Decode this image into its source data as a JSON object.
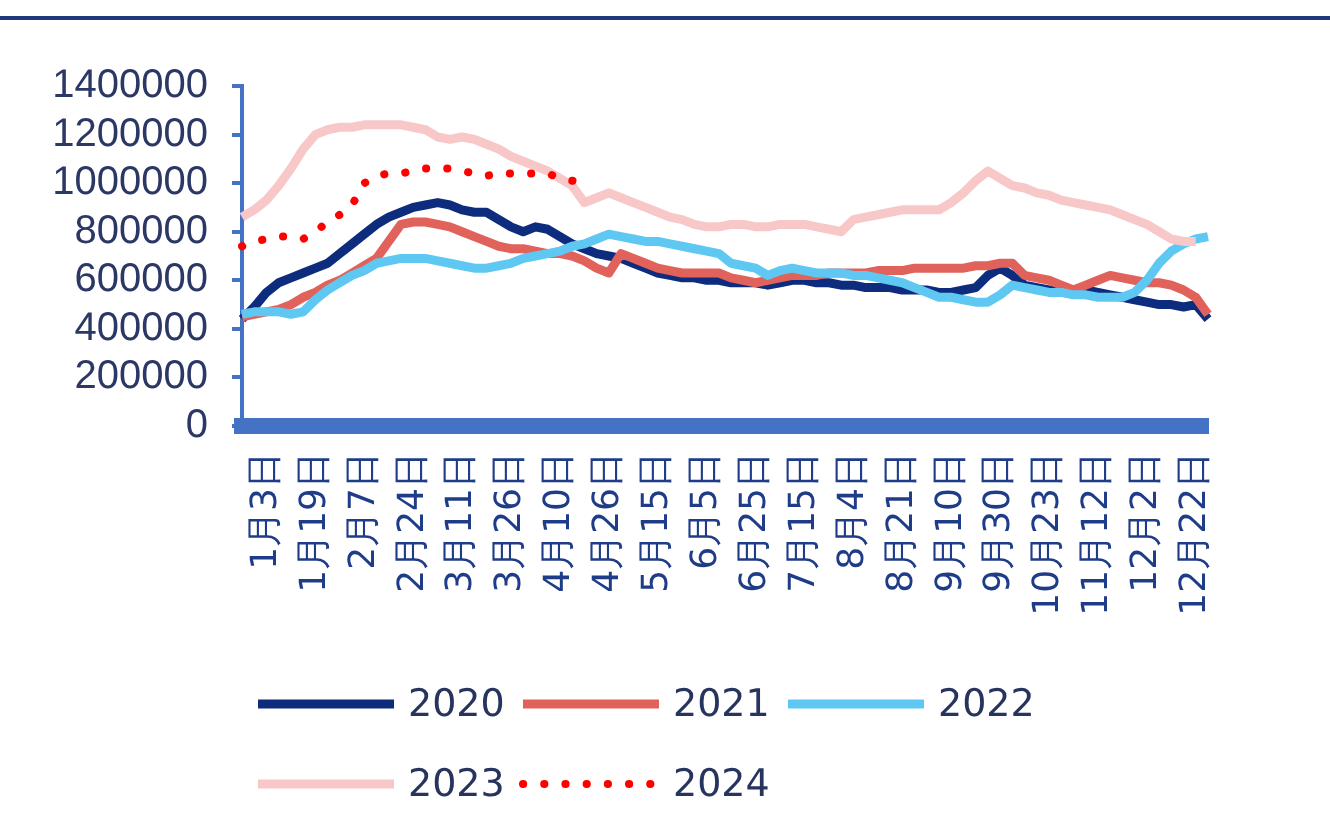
{
  "chart_data": {
    "type": "line",
    "categories": [
      null,
      null,
      "1月3日",
      null,
      null,
      null,
      "1月19日",
      null,
      null,
      null,
      "2月7日",
      null,
      null,
      null,
      "2月24日",
      null,
      null,
      null,
      "3月11日",
      null,
      null,
      null,
      "3月26日",
      null,
      null,
      null,
      "4月10日",
      null,
      null,
      null,
      "4月26日",
      null,
      null,
      null,
      "5月15日",
      null,
      null,
      null,
      "6月5日",
      null,
      null,
      null,
      "6月25日",
      null,
      null,
      null,
      "7月15日",
      null,
      null,
      null,
      "8月4日",
      null,
      null,
      null,
      "8月21日",
      null,
      null,
      null,
      "9月10日",
      null,
      null,
      null,
      "9月30日",
      null,
      null,
      null,
      "10月23日",
      null,
      null,
      null,
      "11月12日",
      null,
      null,
      null,
      "12月2日",
      null,
      null,
      null,
      "12月22日",
      null
    ],
    "ylim": [
      0,
      1400000
    ],
    "yticks": [
      0,
      200000,
      400000,
      600000,
      800000,
      1000000,
      1200000,
      1400000
    ],
    "legend": "bottom left",
    "series": [
      {
        "name": "2020",
        "color": "#0e2c7e",
        "values": [
          440000,
          490000,
          550000,
          590000,
          610000,
          630000,
          650000,
          670000,
          710000,
          750000,
          790000,
          830000,
          860000,
          880000,
          900000,
          910000,
          920000,
          910000,
          890000,
          880000,
          880000,
          850000,
          820000,
          800000,
          820000,
          810000,
          780000,
          750000,
          730000,
          710000,
          700000,
          690000,
          670000,
          650000,
          630000,
          620000,
          610000,
          610000,
          600000,
          600000,
          590000,
          590000,
          590000,
          580000,
          590000,
          600000,
          600000,
          590000,
          590000,
          580000,
          580000,
          570000,
          570000,
          570000,
          560000,
          560000,
          560000,
          550000,
          550000,
          560000,
          570000,
          620000,
          650000,
          620000,
          580000,
          570000,
          560000,
          560000,
          560000,
          560000,
          550000,
          540000,
          530000,
          520000,
          510000,
          500000,
          500000,
          490000,
          500000,
          440000
        ]
      },
      {
        "name": "2021",
        "color": "#e0625a",
        "values": [
          450000,
          460000,
          470000,
          480000,
          500000,
          530000,
          550000,
          580000,
          600000,
          630000,
          660000,
          690000,
          760000,
          830000,
          840000,
          840000,
          830000,
          820000,
          800000,
          780000,
          760000,
          740000,
          730000,
          730000,
          720000,
          710000,
          710000,
          700000,
          680000,
          650000,
          630000,
          710000,
          690000,
          670000,
          650000,
          640000,
          630000,
          630000,
          630000,
          630000,
          610000,
          600000,
          590000,
          600000,
          610000,
          620000,
          620000,
          620000,
          630000,
          630000,
          630000,
          630000,
          640000,
          640000,
          640000,
          650000,
          650000,
          650000,
          650000,
          650000,
          660000,
          660000,
          670000,
          670000,
          620000,
          610000,
          600000,
          580000,
          560000,
          580000,
          600000,
          620000,
          610000,
          600000,
          590000,
          590000,
          580000,
          560000,
          530000,
          460000
        ]
      },
      {
        "name": "2022",
        "color": "#5ec8f2",
        "values": [
          460000,
          470000,
          470000,
          470000,
          460000,
          470000,
          520000,
          560000,
          590000,
          620000,
          640000,
          670000,
          680000,
          690000,
          690000,
          690000,
          680000,
          670000,
          660000,
          650000,
          650000,
          660000,
          670000,
          690000,
          700000,
          710000,
          720000,
          740000,
          750000,
          770000,
          790000,
          780000,
          770000,
          760000,
          760000,
          750000,
          740000,
          730000,
          720000,
          710000,
          670000,
          660000,
          650000,
          620000,
          640000,
          650000,
          640000,
          630000,
          630000,
          630000,
          620000,
          620000,
          610000,
          600000,
          590000,
          570000,
          550000,
          530000,
          530000,
          520000,
          510000,
          510000,
          540000,
          580000,
          570000,
          560000,
          550000,
          550000,
          540000,
          540000,
          530000,
          530000,
          530000,
          550000,
          600000,
          670000,
          720000,
          750000,
          770000,
          780000
        ]
      },
      {
        "name": "2023",
        "color": "#f8c8c8",
        "values": [
          860000,
          890000,
          930000,
          990000,
          1060000,
          1140000,
          1200000,
          1220000,
          1230000,
          1230000,
          1240000,
          1240000,
          1240000,
          1240000,
          1230000,
          1220000,
          1190000,
          1180000,
          1190000,
          1180000,
          1160000,
          1140000,
          1110000,
          1090000,
          1070000,
          1050000,
          1020000,
          990000,
          920000,
          940000,
          960000,
          940000,
          920000,
          900000,
          880000,
          860000,
          850000,
          830000,
          820000,
          820000,
          830000,
          830000,
          820000,
          820000,
          830000,
          830000,
          830000,
          820000,
          810000,
          800000,
          850000,
          860000,
          870000,
          880000,
          890000,
          890000,
          890000,
          890000,
          920000,
          960000,
          1010000,
          1050000,
          1020000,
          990000,
          980000,
          960000,
          950000,
          930000,
          920000,
          910000,
          900000,
          890000,
          870000,
          850000,
          830000,
          800000,
          770000,
          760000,
          760000,
          null
        ]
      },
      {
        "name": "2024",
        "color": "#ff0000",
        "line_style": "dotted",
        "values": [
          740000,
          760000,
          770000,
          780000,
          780000,
          770000,
          800000,
          840000,
          870000,
          910000,
          1000000,
          1030000,
          1040000,
          1040000,
          1050000,
          1060000,
          1060000,
          1060000,
          1050000,
          1040000,
          1030000,
          1040000,
          1040000,
          1040000,
          1040000,
          1040000,
          1020000,
          1010000,
          1000000,
          null,
          null,
          null,
          null,
          null,
          null,
          null,
          null,
          null,
          null,
          null,
          null,
          null,
          null,
          null,
          null,
          null,
          null,
          null,
          null,
          null,
          null,
          null,
          null,
          null,
          null,
          null,
          null,
          null,
          null,
          null,
          null,
          null,
          null,
          null,
          null,
          null,
          null,
          null,
          null,
          null,
          null,
          null,
          null,
          null,
          null,
          null,
          null,
          null,
          null,
          null
        ]
      }
    ]
  }
}
